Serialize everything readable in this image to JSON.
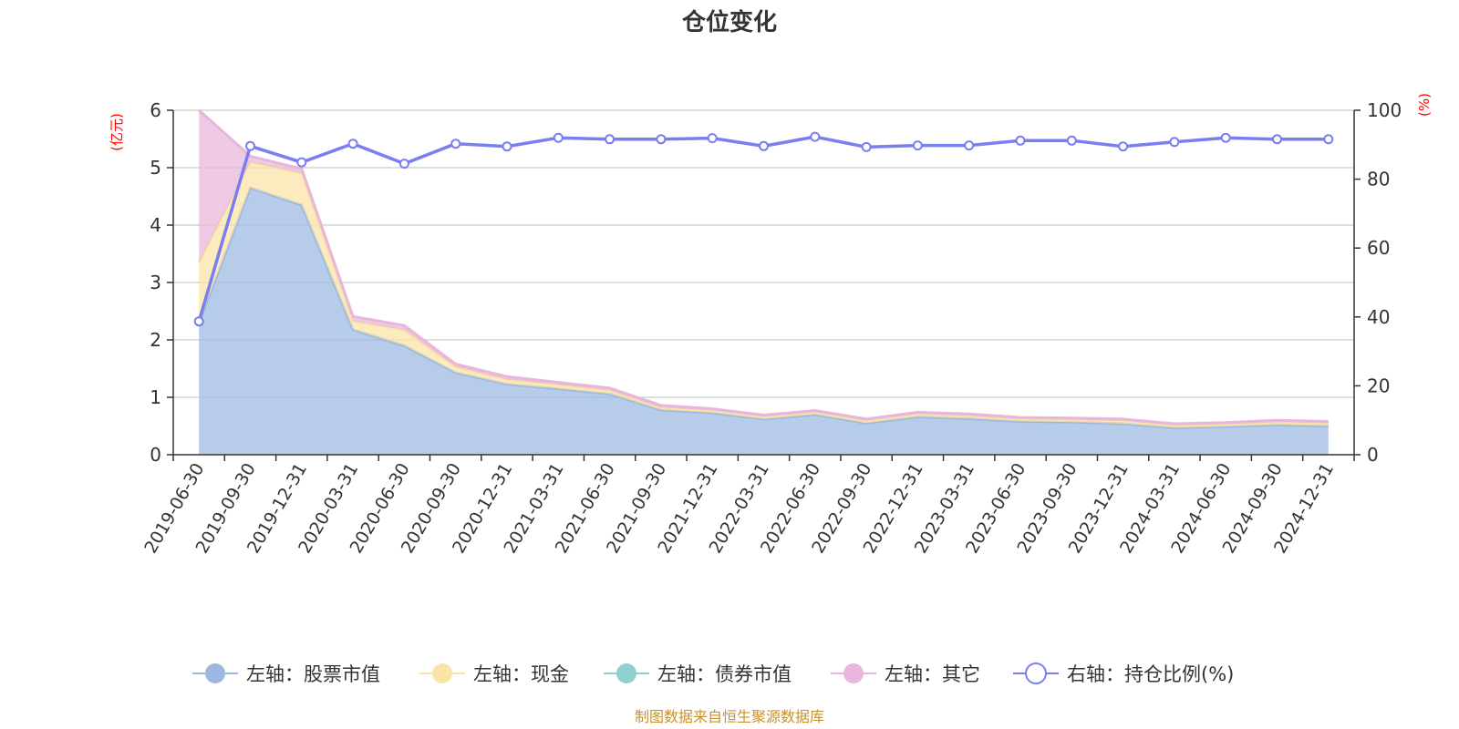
{
  "chart_data": {
    "type": "area",
    "title": "仓位变化",
    "source_note": "制图数据来自恒生聚源数据库",
    "left_axis": {
      "unit": "(亿元)",
      "min": 0,
      "max": 6,
      "ticks": [
        0,
        1,
        2,
        3,
        4,
        5,
        6
      ]
    },
    "right_axis": {
      "unit": "(%)",
      "min": 0,
      "max": 100,
      "ticks": [
        0,
        20,
        40,
        60,
        80,
        100
      ]
    },
    "grid": true,
    "legend_position": "bottom",
    "categories": [
      "2019-06-30",
      "2019-09-30",
      "2019-12-31",
      "2020-03-31",
      "2020-06-30",
      "2020-09-30",
      "2020-12-31",
      "2021-03-31",
      "2021-06-30",
      "2021-09-30",
      "2021-12-31",
      "2022-03-31",
      "2022-06-30",
      "2022-09-30",
      "2022-12-31",
      "2023-03-31",
      "2023-06-30",
      "2023-09-30",
      "2023-12-31",
      "2024-03-31",
      "2024-06-30",
      "2024-09-30",
      "2024-12-31"
    ],
    "series": [
      {
        "name": "左轴：股票市值",
        "axis": "left",
        "kind": "stacked-area",
        "color": "#9bb8e0",
        "values": [
          2.3,
          4.65,
          4.35,
          2.18,
          1.9,
          1.43,
          1.23,
          1.15,
          1.06,
          0.78,
          0.73,
          0.62,
          0.7,
          0.55,
          0.66,
          0.63,
          0.58,
          0.57,
          0.54,
          0.47,
          0.49,
          0.52,
          0.5
        ]
      },
      {
        "name": "左轴：现金",
        "axis": "left",
        "kind": "stacked-area",
        "color": "#f9e3a6",
        "values": [
          1.05,
          0.45,
          0.55,
          0.15,
          0.27,
          0.1,
          0.08,
          0.07,
          0.06,
          0.04,
          0.04,
          0.04,
          0.04,
          0.04,
          0.05,
          0.05,
          0.04,
          0.04,
          0.05,
          0.04,
          0.04,
          0.05,
          0.05
        ]
      },
      {
        "name": "左轴：债券市值",
        "axis": "left",
        "kind": "stacked-area",
        "color": "#8fd1d1",
        "values": [
          0,
          0,
          0,
          0,
          0,
          0,
          0,
          0,
          0,
          0,
          0,
          0,
          0,
          0,
          0,
          0,
          0,
          0,
          0,
          0,
          0,
          0,
          0
        ]
      },
      {
        "name": "左轴：其它",
        "axis": "left",
        "kind": "stacked-area",
        "color": "#e8b6da",
        "values": [
          2.65,
          0.1,
          0.08,
          0.08,
          0.08,
          0.05,
          0.05,
          0.04,
          0.04,
          0.04,
          0.03,
          0.03,
          0.03,
          0.03,
          0.03,
          0.03,
          0.03,
          0.03,
          0.03,
          0.03,
          0.03,
          0.03,
          0.03
        ]
      },
      {
        "name": "右轴：持仓比例(%)",
        "axis": "right",
        "kind": "line",
        "color": "#7a7ef0",
        "values": [
          38.7,
          89.6,
          84.9,
          90.3,
          84.5,
          90.3,
          89.5,
          92.0,
          91.6,
          91.6,
          91.9,
          89.6,
          92.3,
          89.3,
          89.8,
          89.8,
          91.2,
          91.2,
          89.5,
          90.8,
          92.0,
          91.6,
          91.6
        ]
      }
    ]
  }
}
